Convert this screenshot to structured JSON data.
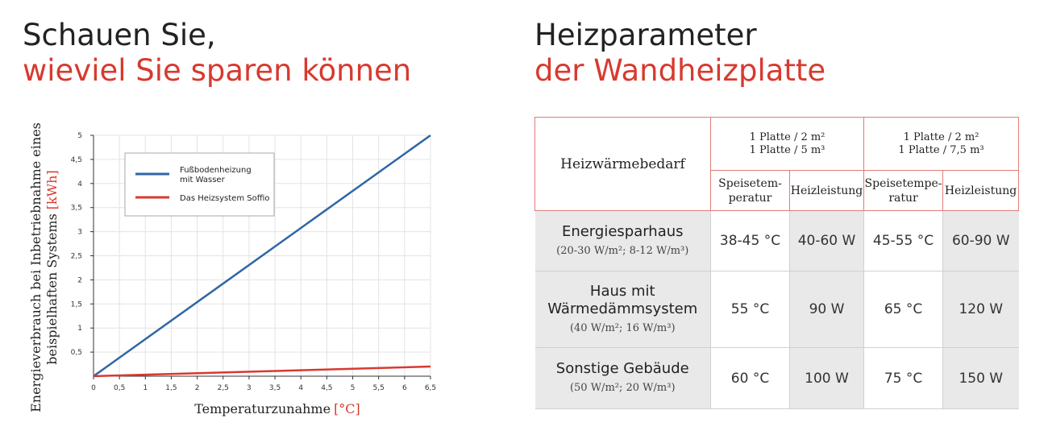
{
  "left_heading": {
    "line1": "Schauen Sie,",
    "line2": "wieviel Sie sparen können"
  },
  "right_heading": {
    "line1": "Heizparameter",
    "line2": "der Wandheizplatte"
  },
  "chart_data": {
    "type": "line",
    "x": [
      0,
      6.5
    ],
    "series": [
      {
        "name": "Fußbodenheizung mit Wasser",
        "color": "#2e66a5",
        "values": [
          0,
          5
        ]
      },
      {
        "name": "Das Heizsystem Soffio",
        "color": "#d73a2f",
        "values": [
          0,
          0.2
        ]
      }
    ],
    "xlabel": "Temperaturzunahme",
    "xlabel_unit": "[°C]",
    "ylabel_line1": "Energieverbrauch bei Inbetriebnahme eines",
    "ylabel_line2": "beispielhaften Systems",
    "ylabel_unit": "[kWh]",
    "xlim": [
      0,
      6.5
    ],
    "ylim": [
      0,
      5
    ],
    "x_ticks": [
      0,
      0.5,
      1,
      1.5,
      2,
      2.5,
      3,
      3.5,
      4,
      4.5,
      5,
      5.5,
      6,
      6.5
    ],
    "x_tick_labels": [
      "0",
      "0,5",
      "1",
      "1,5",
      "2",
      "2,5",
      "3",
      "3,5",
      "4",
      "4,5",
      "5",
      "5,5",
      "6",
      "6,5"
    ],
    "y_ticks": [
      0.5,
      1,
      1.5,
      2,
      2.5,
      3,
      3.5,
      4,
      4.5,
      5
    ],
    "y_tick_labels": [
      "0,5",
      "1",
      "1,5",
      "2",
      "2,5",
      "3",
      "3,5",
      "4",
      "4,5",
      "5"
    ],
    "grid": true,
    "legend_position": "top-left",
    "legend": [
      {
        "line1": "Fußbodenheizung",
        "line2": "mit Wasser"
      },
      {
        "line1": "Das Heizsystem Soffio",
        "line2": ""
      }
    ]
  },
  "table": {
    "header": {
      "bedarf": "Heizwärmebedarf",
      "group1_line1": "1 Platte / 2 m²",
      "group1_line2": "1 Platte / 5 m³",
      "group2_line1": "1 Platte / 2 m²",
      "group2_line2": "1 Platte / 7,5 m³",
      "sub1_line1": "Speisetem-",
      "sub1_line2": "peratur",
      "sub2": "Heizleistung",
      "sub3_line1": "Speisetempe-",
      "sub3_line2": "ratur",
      "sub4": "Heizleistung"
    },
    "rows": [
      {
        "name_line1": "Energiesparhaus",
        "name_line2": "",
        "spec": "(20-30 W/m²; 8-12 W/m³)",
        "values": [
          "38-45 °C",
          "40-60 W",
          "45-55 °C",
          "60-90 W"
        ]
      },
      {
        "name_line1": "Haus mit",
        "name_line2": "Wärmedämmsystem",
        "spec": "(40 W/m²; 16 W/m³)",
        "values": [
          "55 °C",
          "90 W",
          "65 °C",
          "120 W"
        ]
      },
      {
        "name_line1": "Sonstige Gebäude",
        "name_line2": "",
        "spec": "(50 W/m²; 20 W/m³)",
        "values": [
          "60 °C",
          "100 W",
          "75 °C",
          "150 W"
        ]
      }
    ]
  }
}
